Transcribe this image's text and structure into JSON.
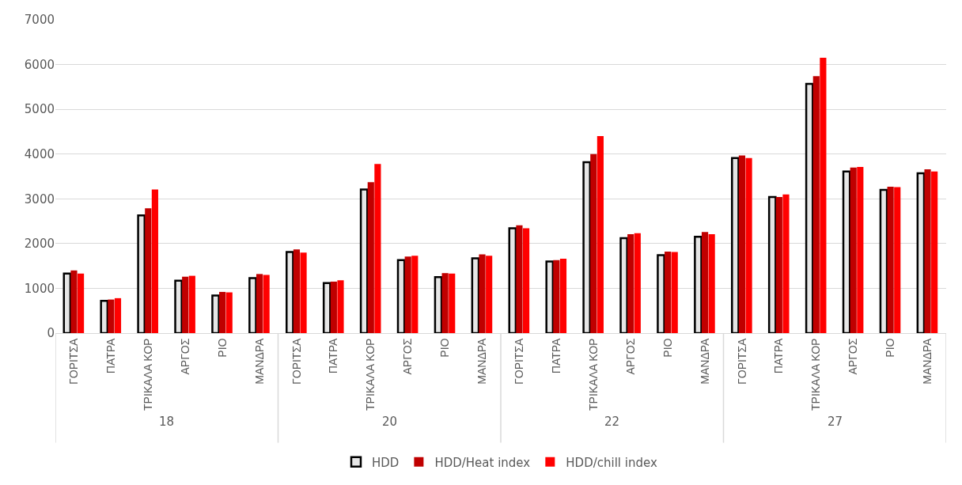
{
  "chart_data": {
    "type": "bar",
    "categories": [
      "ΓΟΡΙΤΣΑ",
      "ΠΑΤΡΑ",
      "ΤΡΙΚΑΛΑ ΚΟΡ",
      "ΑΡΓΟΣ",
      "ΡΙΟ",
      "ΜΑΝΔΡΑ",
      "ΓΟΡΙΤΣΑ",
      "ΠΑΤΡΑ",
      "ΤΡΙΚΑΛΑ ΚΟΡ",
      "ΑΡΓΟΣ",
      "ΡΙΟ",
      "ΜΑΝΔΡΑ",
      "ΓΟΡΙΤΣΑ",
      "ΠΑΤΡΑ",
      "ΤΡΙΚΑΛΑ ΚΟΡ",
      "ΑΡΓΟΣ",
      "ΡΙΟ",
      "ΜΑΝΔΡΑ",
      "ΓΟΡΙΤΣΑ",
      "ΠΑΤΡΑ",
      "ΤΡΙΚΑΛΑ ΚΟΡ",
      "ΑΡΓΟΣ",
      "ΡΙΟ",
      "ΜΑΝΔΡΑ"
    ],
    "series": [
      {
        "name": "HDD",
        "color": "#e6e6e6",
        "values": [
          1330,
          720,
          2630,
          1170,
          840,
          1230,
          1810,
          1120,
          3210,
          1630,
          1250,
          1670,
          2340,
          1600,
          3820,
          2120,
          1740,
          2150,
          3910,
          3040,
          5570,
          3610,
          3200,
          3570
        ]
      },
      {
        "name": "HDD/Heat index",
        "color": "#c00000",
        "values": [
          1400,
          750,
          2790,
          1260,
          920,
          1320,
          1870,
          1150,
          3370,
          1710,
          1340,
          1760,
          2410,
          1630,
          4000,
          2210,
          1820,
          2260,
          3970,
          3040,
          5740,
          3700,
          3270,
          3660
        ]
      },
      {
        "name": "HDD/chill index",
        "color": "#ff0000",
        "values": [
          1330,
          780,
          3210,
          1280,
          910,
          1300,
          1800,
          1180,
          3780,
          1730,
          1330,
          1730,
          2340,
          1660,
          4400,
          2230,
          1810,
          2210,
          3910,
          3100,
          6150,
          3710,
          3260,
          3610
        ]
      }
    ],
    "annotations": [
      "18",
      "20",
      "22",
      "27"
    ],
    "ylim": [
      0,
      7000
    ],
    "yticks": [
      0,
      1000,
      2000,
      3000,
      4000,
      5000,
      6000,
      7000
    ],
    "grid": "y",
    "legend": "bottom"
  }
}
